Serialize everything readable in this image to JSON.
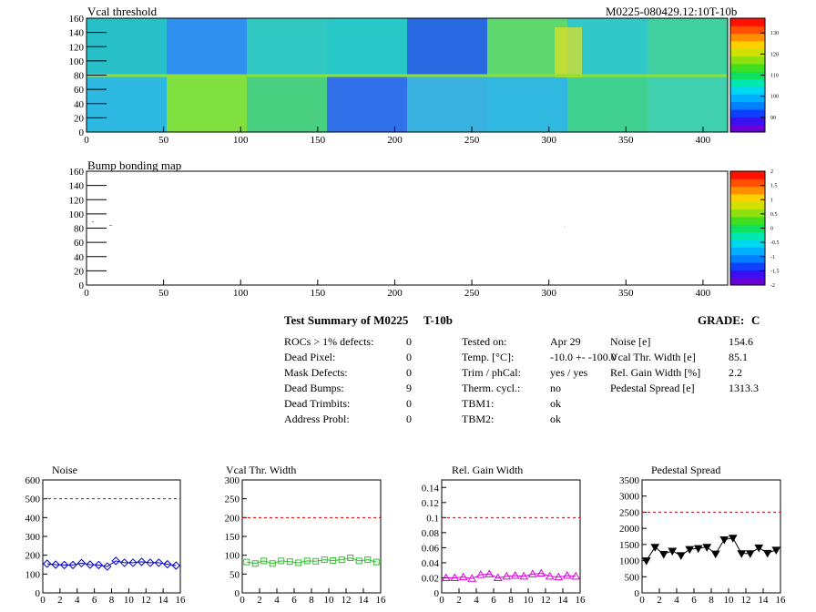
{
  "top_map": {
    "title": "Vcal threshold",
    "module_label": "M0225-080429.12:10T-10b",
    "x_ticks": [
      0,
      50,
      100,
      150,
      200,
      250,
      300,
      350,
      400
    ],
    "y_ticks": [
      0,
      20,
      40,
      60,
      80,
      100,
      120,
      140,
      160
    ],
    "z_ticks": [
      90,
      100,
      110,
      120,
      130
    ]
  },
  "bump_map": {
    "title": "Bump bonding map",
    "x_ticks": [
      0,
      50,
      100,
      150,
      200,
      250,
      300,
      350,
      400
    ],
    "y_ticks": [
      0,
      20,
      40,
      60,
      80,
      100,
      120,
      140,
      160
    ],
    "z_ticks": [
      "2",
      "1.5",
      "1",
      "0.5",
      "0",
      "-0.5",
      "-1",
      "-1.5",
      "-2"
    ]
  },
  "summary": {
    "title": "Test Summary of M0225",
    "temp_tag": "T-10b",
    "grade_label": "GRADE:",
    "grade": "C",
    "col1": [
      {
        "label": "ROCs > 1% defects:",
        "value": "0"
      },
      {
        "label": "Dead Pixel:",
        "value": "0"
      },
      {
        "label": "Mask Defects:",
        "value": "0"
      },
      {
        "label": "Dead Bumps:",
        "value": "9"
      },
      {
        "label": "Dead Trimbits:",
        "value": "0"
      },
      {
        "label": "Address Probl:",
        "value": "0"
      }
    ],
    "col2": [
      {
        "label": "Tested on:",
        "value": "Apr 29"
      },
      {
        "label": "Temp. [°C]:",
        "value": "-10.0 +- -100.0"
      },
      {
        "label": "Trim / phCal:",
        "value": "yes / yes"
      },
      {
        "label": "Therm. cycl.:",
        "value": "no"
      },
      {
        "label": "TBM1:",
        "value": "ok"
      },
      {
        "label": "TBM2:",
        "value": "ok"
      }
    ],
    "col3": [
      {
        "label": "Noise [e]",
        "value": "154.6"
      },
      {
        "label": "Vcal Thr. Width [e]",
        "value": "85.1"
      },
      {
        "label": "Rel. Gain Width [%]",
        "value": "2.2"
      },
      {
        "label": "Pedestal Spread [e]",
        "value": "1313.3"
      }
    ]
  },
  "chart_data": [
    {
      "type": "line",
      "title": "Noise",
      "x": [
        0,
        1,
        2,
        3,
        4,
        5,
        6,
        7,
        8,
        9,
        10,
        11,
        12,
        13,
        14,
        15
      ],
      "series": [
        {
          "values": [
            155,
            150,
            148,
            148,
            158,
            150,
            148,
            140,
            170,
            160,
            160,
            165,
            160,
            160,
            152,
            145
          ],
          "color": "#0000cc",
          "marker": "diamond"
        }
      ],
      "ylim": [
        0,
        600
      ],
      "y_ticks": [
        0,
        100,
        200,
        300,
        400,
        500,
        600
      ],
      "reference_line": 500,
      "x_ticks": [
        0,
        2,
        4,
        6,
        8,
        10,
        12,
        14,
        16
      ]
    },
    {
      "type": "line",
      "title": "Vcal Thr. Width",
      "x": [
        0,
        1,
        2,
        3,
        4,
        5,
        6,
        7,
        8,
        9,
        10,
        11,
        12,
        13,
        14,
        15
      ],
      "series": [
        {
          "values": [
            82,
            78,
            85,
            78,
            85,
            83,
            80,
            85,
            84,
            88,
            86,
            88,
            93,
            85,
            88,
            82
          ],
          "color": "#33bb33",
          "marker": "square-open"
        }
      ],
      "ylim": [
        0,
        300
      ],
      "y_ticks": [
        0,
        50,
        100,
        150,
        200,
        250,
        300
      ],
      "reference_line": 200,
      "x_ticks": [
        0,
        2,
        4,
        6,
        8,
        10,
        12,
        14,
        16
      ]
    },
    {
      "type": "line",
      "title": "Rel. Gain Width",
      "x": [
        0,
        1,
        2,
        3,
        4,
        5,
        6,
        7,
        8,
        9,
        10,
        11,
        12,
        13,
        14,
        15
      ],
      "series": [
        {
          "values": [
            0.02,
            0.02,
            0.021,
            0.019,
            0.024,
            0.025,
            0.02,
            0.022,
            0.023,
            0.022,
            0.025,
            0.026,
            0.022,
            0.021,
            0.023,
            0.022
          ],
          "color": "#dd00dd",
          "marker": "triangle"
        }
      ],
      "ylim": [
        0,
        0.15
      ],
      "y_ticks": [
        0,
        0.02,
        0.04,
        0.06,
        0.08,
        0.1,
        0.12,
        0.14
      ],
      "reference_line": 0.1,
      "x_ticks": [
        0,
        2,
        4,
        6,
        8,
        10,
        12,
        14,
        16
      ]
    },
    {
      "type": "line",
      "title": "Pedestal Spread",
      "x": [
        0,
        1,
        2,
        3,
        4,
        5,
        6,
        7,
        8,
        9,
        10,
        11,
        12,
        13,
        14,
        15
      ],
      "series": [
        {
          "values": [
            1000,
            1420,
            1200,
            1300,
            1160,
            1350,
            1380,
            1420,
            1210,
            1650,
            1700,
            1220,
            1220,
            1400,
            1230,
            1330
          ],
          "color": "#000000",
          "marker": "triangle-down"
        }
      ],
      "ylim": [
        0,
        3500
      ],
      "y_ticks": [
        0,
        500,
        1000,
        1500,
        2000,
        2500,
        3000,
        3500
      ],
      "reference_line": 2500,
      "x_ticks": [
        0,
        2,
        4,
        6,
        8,
        10,
        12,
        14,
        16
      ]
    }
  ]
}
